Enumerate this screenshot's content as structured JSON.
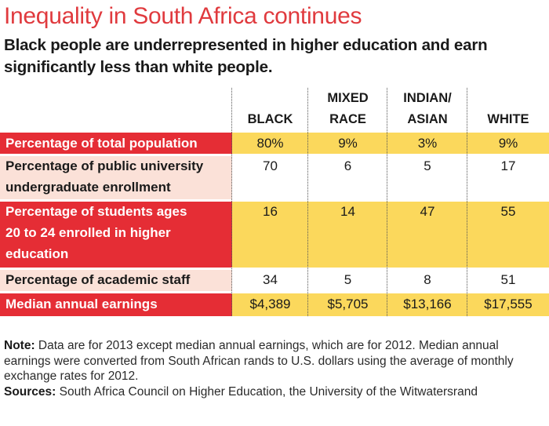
{
  "title": "Inequality in South Africa continues",
  "subtitle": "Black people are underrepresented in higher education and earn significantly less than white people.",
  "colors": {
    "title": "#e03a3e",
    "label_red": "#e52d35",
    "label_pink": "#fbe1d8",
    "value_yellow": "#fbd85c",
    "value_white": "#ffffff"
  },
  "chart_data": {
    "type": "table",
    "columns": [
      {
        "line1": "",
        "line2": "BLACK"
      },
      {
        "line1": "MIXED",
        "line2": "RACE"
      },
      {
        "line1": "INDIAN/",
        "line2": "ASIAN"
      },
      {
        "line1": "",
        "line2": "WHITE"
      }
    ],
    "rows": [
      {
        "label": "Percentage of total population",
        "values": [
          "80%",
          "9%",
          "3%",
          "9%"
        ],
        "style": "red"
      },
      {
        "label": "Percentage of public university undergraduate enrollment",
        "values": [
          "70",
          "6",
          "5",
          "17"
        ],
        "style": "pink"
      },
      {
        "label": "Percentage of students ages 20 to 24 enrolled in higher education",
        "values": [
          "16",
          "14",
          "47",
          "55"
        ],
        "style": "red"
      },
      {
        "label": "Percentage of academic staff",
        "values": [
          "34",
          "5",
          "8",
          "51"
        ],
        "style": "pink"
      },
      {
        "label": "Median annual earnings",
        "values": [
          "$4,389",
          "$5,705",
          "$13,166",
          "$17,555"
        ],
        "style": "red"
      }
    ]
  },
  "footer": {
    "note_label": "Note:",
    "note_text": " Data are for 2013 except median annual earnings, which are for 2012. Median annual earnings were converted from South African rands to U.S. dollars using the average of monthly exchange rates for 2012.",
    "sources_label": "Sources:",
    "sources_text": " South Africa Council on Higher Education, the University of the Witwatersrand"
  }
}
